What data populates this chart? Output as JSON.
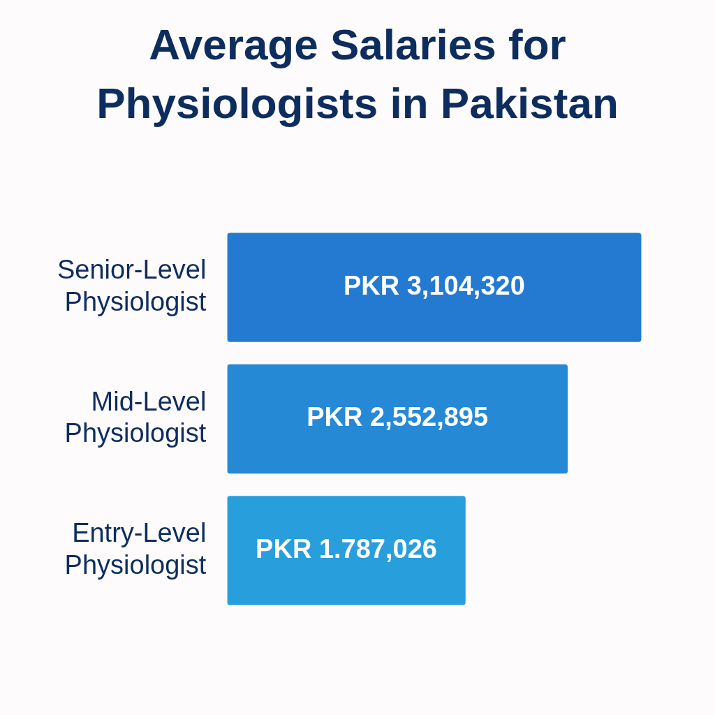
{
  "chart_data": {
    "type": "bar",
    "orientation": "horizontal",
    "title": "Average Salaries for Physiologists in Pakistan",
    "categories": [
      "Senior-Level Physiologist",
      "Mid-Level Physiologist",
      "Entry-Level Physiologist"
    ],
    "values": [
      3104320,
      2552895,
      1787026
    ],
    "colors": [
      "#247ad1",
      "#2589d6",
      "#289edd"
    ],
    "value_labels": [
      "PKR 3,104,320",
      "PKR 2,552,895",
      "PKR 1.787,026"
    ],
    "legend": false
  }
}
